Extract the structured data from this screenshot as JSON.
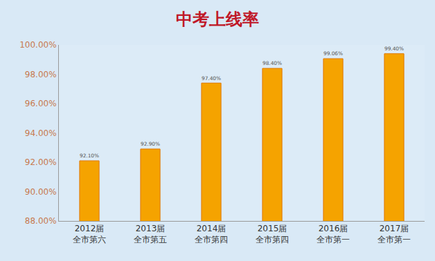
{
  "chart_data": {
    "type": "bar",
    "title": "中考上线率",
    "categories": [
      "2012届\n全市第六",
      "2013届\n全市第五",
      "2014届\n全市第四",
      "2015届\n全市第四",
      "2016届\n全市第一",
      "2017届\n全市第一"
    ],
    "values": [
      92.1,
      92.9,
      97.4,
      98.4,
      99.06,
      99.4
    ],
    "value_labels": [
      "92.10%",
      "92.90%",
      "97.40%",
      "98.40%",
      "99.06%",
      "99.40%"
    ],
    "color": "#f5a300",
    "ylim": [
      88,
      100
    ],
    "yticks": [
      {
        "value": 88,
        "label": "88.00%"
      },
      {
        "value": 90,
        "label": "90.00%"
      },
      {
        "value": 92,
        "label": "92.00%"
      },
      {
        "value": 94,
        "label": "94.00%"
      },
      {
        "value": 96,
        "label": "96.00%"
      },
      {
        "value": 98,
        "label": "98.00%"
      },
      {
        "value": 100,
        "label": "100.00%"
      }
    ],
    "grid": false,
    "data_labels": true
  }
}
